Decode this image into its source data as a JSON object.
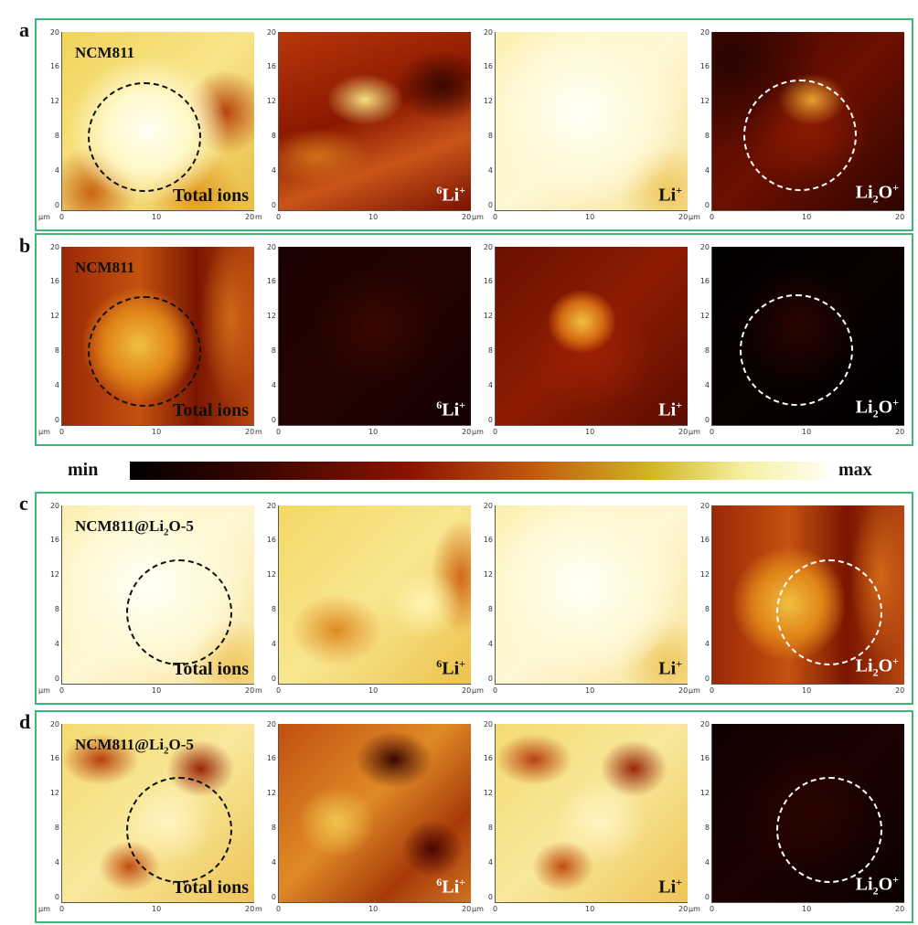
{
  "rows": [
    {
      "label": "a",
      "sample": "NCM811",
      "sample_sub": "",
      "sample_suffix": "",
      "panels": [
        {
          "ion_kind": "total",
          "circle": "dark",
          "map": "bright-yellow"
        },
        {
          "ion_kind": "li6",
          "circle": "none",
          "map": "red-mottled"
        },
        {
          "ion_kind": "li",
          "circle": "none",
          "map": "very-bright"
        },
        {
          "ion_kind": "li2o",
          "circle": "light",
          "map": "dark-red"
        }
      ]
    },
    {
      "label": "b",
      "sample": "NCM811",
      "sample_sub": "",
      "sample_suffix": "",
      "panels": [
        {
          "ion_kind": "total",
          "circle": "dark",
          "map": "orange-red"
        },
        {
          "ion_kind": "li6",
          "circle": "none",
          "map": "near-black"
        },
        {
          "ion_kind": "li",
          "circle": "none",
          "map": "red-spotted"
        },
        {
          "ion_kind": "li2o",
          "circle": "light",
          "map": "black-sparse"
        }
      ]
    },
    {
      "label": "c",
      "sample": "NCM811@Li",
      "sample_sub": "2",
      "sample_suffix": "O-5",
      "panels": [
        {
          "ion_kind": "total",
          "circle": "dark",
          "map": "very-bright"
        },
        {
          "ion_kind": "li6",
          "circle": "none",
          "map": "yellow-orange"
        },
        {
          "ion_kind": "li",
          "circle": "none",
          "map": "very-bright"
        },
        {
          "ion_kind": "li2o",
          "circle": "light",
          "map": "orange-red"
        }
      ]
    },
    {
      "label": "d",
      "sample": "NCM811@Li",
      "sample_sub": "2",
      "sample_suffix": "O-5",
      "panels": [
        {
          "ion_kind": "total",
          "circle": "dark",
          "map": "yellow-patchy"
        },
        {
          "ion_kind": "li6",
          "circle": "none",
          "map": "orange-patchy"
        },
        {
          "ion_kind": "li",
          "circle": "none",
          "map": "yellow-patchy"
        },
        {
          "ion_kind": "li2o",
          "circle": "light",
          "map": "dark-sparse"
        }
      ]
    }
  ],
  "ions": {
    "total": "Total ions",
    "li6_sup": "6",
    "li6_base": "Li",
    "li6_charge": "+",
    "li_base": "Li",
    "li_charge": "+",
    "li2o_base": "Li",
    "li2o_sub": "2",
    "li2o_mid": "O",
    "li2o_charge": "+"
  },
  "axes": {
    "y_ticks": [
      "20",
      "16",
      "12",
      "8",
      "4",
      "0"
    ],
    "x_ticks": [
      "0",
      "10",
      "20"
    ],
    "unit": "µm",
    "unit_alt": "m"
  },
  "colorbar": {
    "min_label": "min",
    "max_label": "max",
    "stops": [
      "#000000",
      "#3a0500",
      "#8a1300",
      "#c05a10",
      "#d2b624",
      "#f4f0a0",
      "#fffdf0"
    ]
  },
  "colors": {
    "frame": "#3cb878"
  }
}
